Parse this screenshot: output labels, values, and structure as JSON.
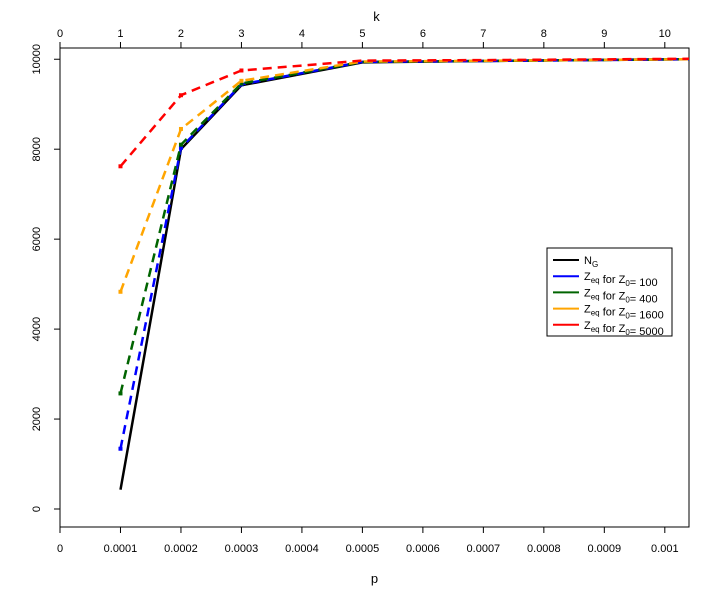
{
  "chart_data": {
    "type": "line",
    "xlabel": "p",
    "x2label": "k",
    "ylabel": "",
    "xlim": [
      0,
      0.00104
    ],
    "ylim": [
      -400,
      10250
    ],
    "x_ticks": [
      0,
      0.0001,
      0.0002,
      0.0003,
      0.0004,
      0.0005,
      0.0006,
      0.0007,
      0.0008,
      0.0009,
      0.001
    ],
    "x_tick_labels": [
      "0",
      "0.0001",
      "0.0002",
      "0.0003",
      "0.0004",
      "0.0005",
      "0.0006",
      "0.0007",
      "0.0008",
      "0.0009",
      "0.001"
    ],
    "x2_ticks": [
      0,
      1,
      2,
      3,
      4,
      5,
      6,
      7,
      8,
      9,
      10
    ],
    "x2_tick_labels": [
      "0",
      "1",
      "2",
      "3",
      "4",
      "5",
      "6",
      "7",
      "8",
      "9",
      "10"
    ],
    "y_ticks": [
      0,
      2000,
      4000,
      6000,
      8000,
      10000
    ],
    "y_tick_labels": [
      "0",
      "2000",
      "4000",
      "6000",
      "8000",
      "10000"
    ],
    "grid": false,
    "legend_position": "right",
    "series": [
      {
        "name_main": "N",
        "name_sub": "G",
        "name_rest": "",
        "color": "#000000",
        "dashed": false,
        "markers": false,
        "x": [
          0.0001,
          0.0002,
          0.0003,
          0.0005,
          0.0007,
          0.00104
        ],
        "y": [
          430,
          8000,
          9420,
          9930,
          9960,
          10000
        ]
      },
      {
        "name_main": "Z",
        "name_sub": "eq",
        "name_rest": " for Z",
        "name_sub2": "0",
        "name_tail": "= 100",
        "color": "#0000ff",
        "dashed": true,
        "markers": true,
        "x": [
          0.0001,
          0.0002,
          0.0003,
          0.0005,
          0.0007,
          0.00104
        ],
        "y": [
          1340,
          8030,
          9440,
          9940,
          9960,
          10000
        ]
      },
      {
        "name_main": "Z",
        "name_sub": "eq",
        "name_rest": " for Z",
        "name_sub2": "0",
        "name_tail": "= 400",
        "color": "#006400",
        "dashed": true,
        "markers": true,
        "x": [
          0.0001,
          0.0002,
          0.0003,
          0.0005,
          0.0007,
          0.00104
        ],
        "y": [
          2570,
          8100,
          9460,
          9940,
          9960,
          10000
        ]
      },
      {
        "name_main": "Z",
        "name_sub": "eq",
        "name_rest": " for Z",
        "name_sub2": "0",
        "name_tail": "= 1600",
        "color": "#ffa500",
        "dashed": true,
        "markers": true,
        "x": [
          0.0001,
          0.0002,
          0.0003,
          0.0005,
          0.0007,
          0.00104
        ],
        "y": [
          4830,
          8450,
          9520,
          9950,
          9965,
          10000
        ]
      },
      {
        "name_main": "Z",
        "name_sub": "eq",
        "name_rest": " for Z",
        "name_sub2": "0",
        "name_tail": "= 5000",
        "color": "#ff0000",
        "dashed": true,
        "markers": true,
        "x": [
          0.0001,
          0.0002,
          0.0003,
          0.0005,
          0.0007,
          0.00104
        ],
        "y": [
          7620,
          9200,
          9750,
          9970,
          9980,
          10010
        ]
      }
    ]
  }
}
